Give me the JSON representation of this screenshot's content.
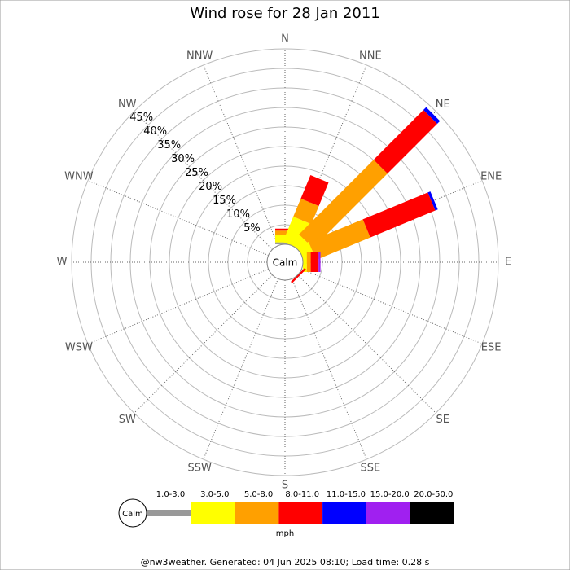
{
  "chart_data": {
    "type": "windrose",
    "title": "Wind rose for 28 Jan 2011",
    "categories": [
      "N",
      "NNE",
      "NE",
      "ENE",
      "E",
      "ESE",
      "SE",
      "SSE",
      "S",
      "SSW",
      "SW",
      "WSW",
      "W",
      "WNW",
      "NW",
      "NNW"
    ],
    "calm_label": "Calm",
    "rlim": [
      0,
      50
    ],
    "rticks": [
      {
        "value": 5,
        "label": "5%"
      },
      {
        "value": 10,
        "label": "10%"
      },
      {
        "value": 15,
        "label": "15%"
      },
      {
        "value": 20,
        "label": "20%"
      },
      {
        "value": 25,
        "label": "25%"
      },
      {
        "value": 30,
        "label": "30%"
      },
      {
        "value": 35,
        "label": "35%"
      },
      {
        "value": 40,
        "label": "40%"
      },
      {
        "value": 45,
        "label": "45%"
      }
    ],
    "series": [
      {
        "name": "1.0-3.0",
        "color": "#999999",
        "values": [
          0.5,
          0,
          0,
          0,
          0,
          0,
          0,
          0,
          0,
          0,
          0,
          0,
          0,
          0,
          0,
          0
        ]
      },
      {
        "name": "3.0-5.0",
        "color": "#ffff00",
        "values": [
          2,
          7,
          3,
          3,
          1,
          0,
          0,
          0,
          0,
          0,
          0,
          0,
          0,
          0,
          0,
          0
        ]
      },
      {
        "name": "5.0-8.0",
        "color": "#ffa000",
        "values": [
          1,
          5,
          27,
          15,
          1,
          0,
          0,
          0,
          0,
          0,
          0,
          0,
          0,
          0,
          0,
          0
        ]
      },
      {
        "name": "8.0-11.0",
        "color": "#ff0000",
        "values": [
          0.5,
          6.5,
          18,
          18,
          2,
          0,
          0.5,
          0,
          0,
          0,
          0,
          0,
          0,
          0,
          0,
          0
        ]
      },
      {
        "name": "11.0-15.0",
        "color": "#0000ff",
        "values": [
          0,
          0,
          1,
          0.7,
          0,
          0,
          0,
          0,
          0,
          0,
          0,
          0,
          0,
          0,
          0,
          0
        ]
      },
      {
        "name": "15.0-20.0",
        "color": "#a020f0",
        "values": [
          0,
          0,
          0,
          0,
          0.5,
          0,
          0,
          0,
          0,
          0,
          0,
          0,
          0,
          0,
          0,
          0
        ]
      },
      {
        "name": "20.0-50.0",
        "color": "#000000",
        "values": [
          0,
          0,
          0,
          0,
          0,
          0,
          0,
          0,
          0,
          0,
          0,
          0,
          0,
          0,
          0,
          0
        ]
      }
    ],
    "legend_unit": "mph",
    "footer": "@nw3weather. Generated: 04 Jun 2025 08:10; Load time: 0.28 s"
  }
}
